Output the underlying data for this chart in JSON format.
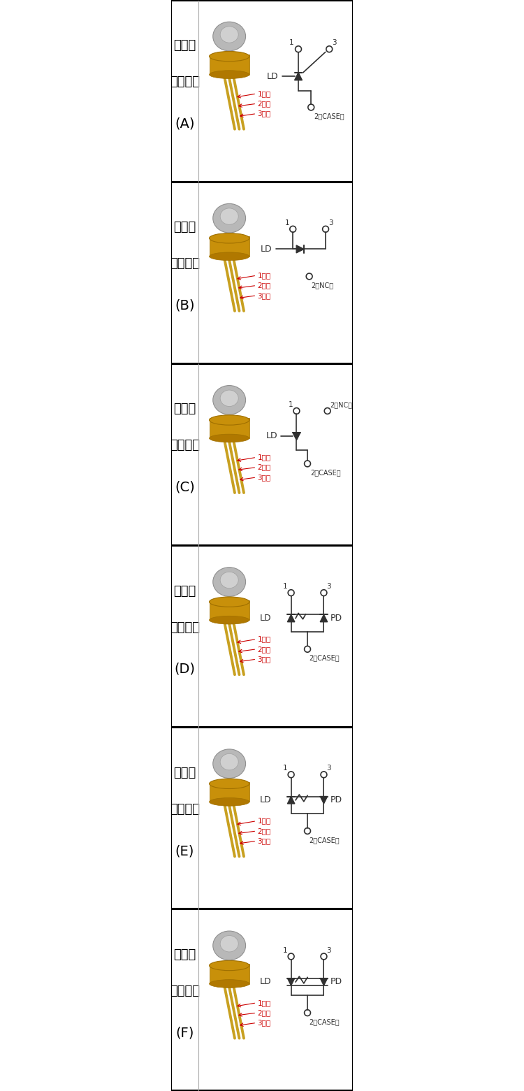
{
  "panels": [
    {
      "label": "A",
      "title_lines": [
        "激光管",
        "脚位接法",
        "(A)"
      ],
      "circuit_type": "A"
    },
    {
      "label": "B",
      "title_lines": [
        "激光管",
        "脚位接法",
        "(B)"
      ],
      "circuit_type": "B"
    },
    {
      "label": "C",
      "title_lines": [
        "激光管",
        "脚位接法",
        "(C)"
      ],
      "circuit_type": "C"
    },
    {
      "label": "D",
      "title_lines": [
        "激光管",
        "脚位接法",
        "(D)"
      ],
      "circuit_type": "D"
    },
    {
      "label": "E",
      "title_lines": [
        "激光管",
        "脚位接法",
        "(E)"
      ],
      "circuit_type": "E"
    },
    {
      "label": "F",
      "title_lines": [
        "激光管",
        "脚位接法",
        "(F)"
      ],
      "circuit_type": "F"
    }
  ],
  "bg_color": "#ffffff",
  "border_color": "#000000",
  "text_color": "#000000",
  "red_color": "#cc0000",
  "circuit_color": "#303030",
  "title_fontsize": 13,
  "pin_label_fontsize": 7.5,
  "divider_color": "#aaaaaa"
}
